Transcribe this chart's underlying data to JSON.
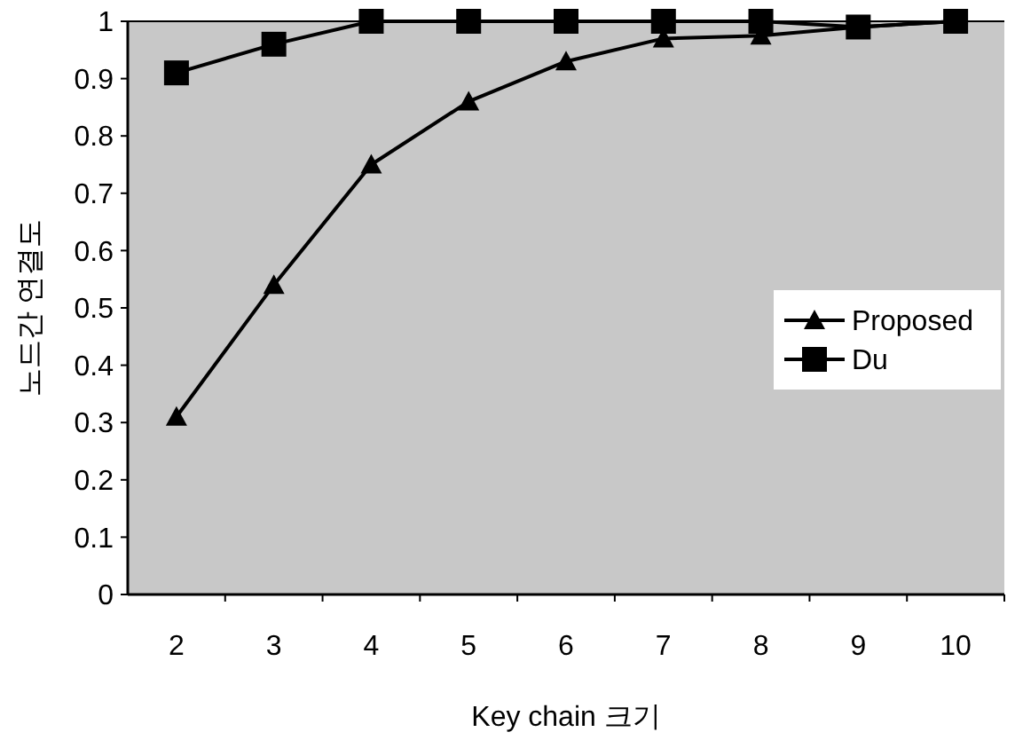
{
  "chart_data": {
    "type": "line",
    "xlabel": "Key chain 크기",
    "ylabel": "노드간 연결도",
    "categories": [
      "2",
      "3",
      "4",
      "5",
      "6",
      "7",
      "8",
      "9",
      "10"
    ],
    "series": [
      {
        "name": "Proposed",
        "color": "#000000",
        "marker": "triangle",
        "values": [
          0.31,
          0.54,
          0.75,
          0.86,
          0.93,
          0.97,
          0.975,
          0.99,
          1.0
        ]
      },
      {
        "name": "Du",
        "color": "#000000",
        "marker": "square",
        "values": [
          0.91,
          0.96,
          1,
          1,
          1,
          1,
          1,
          0.99,
          1
        ]
      }
    ],
    "ylim": [
      0,
      1
    ],
    "yticks": [
      0,
      0.1,
      0.2,
      0.3,
      0.4,
      0.5,
      0.6,
      0.7,
      0.8,
      0.9,
      1
    ],
    "grid": false,
    "legend": "right",
    "line_style": "solid"
  }
}
